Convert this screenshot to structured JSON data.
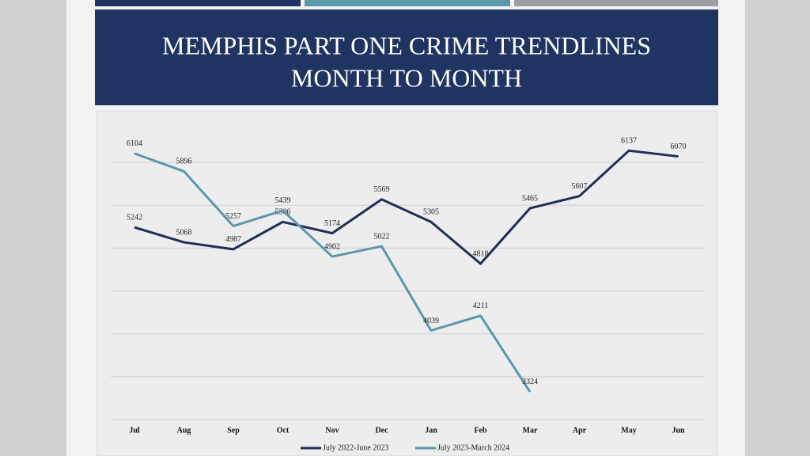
{
  "chart_data": {
    "type": "line",
    "title": [
      "MEMPHIS PART ONE CRIME TRENDLINES",
      "MONTH TO MONTH"
    ],
    "categories": [
      "Jul",
      "Aug",
      "Sep",
      "Oct",
      "Nov",
      "Dec",
      "Jan",
      "Feb",
      "Mar",
      "Apr",
      "May",
      "Jun"
    ],
    "series": [
      {
        "name": "July 2022-June 2023",
        "color": "#1f2d57",
        "values": [
          5242,
          5068,
          4987,
          5306,
          5174,
          5569,
          5305,
          4818,
          5465,
          5607,
          6137,
          6070
        ]
      },
      {
        "name": "July 2023-March 2024",
        "color": "#5b98aa",
        "values": [
          6104,
          5896,
          5257,
          5439,
          4902,
          5022,
          4039,
          4211,
          3324,
          null,
          null,
          null
        ]
      }
    ],
    "ylim": [
      3000,
      6500
    ],
    "yticks": [
      3000,
      3500,
      4000,
      4500,
      5000,
      5500,
      6000
    ],
    "grid": true,
    "legend": "bottom"
  }
}
